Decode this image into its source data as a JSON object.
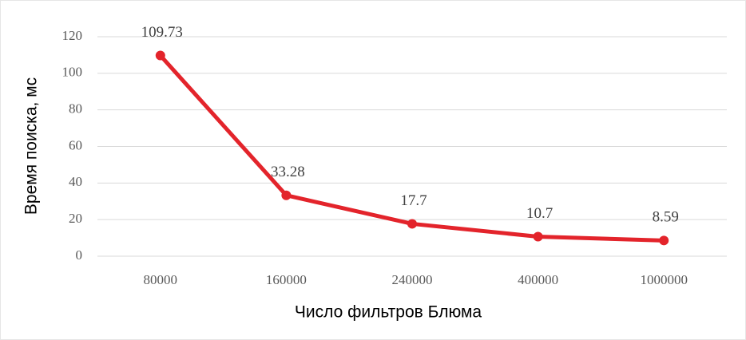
{
  "chart_data": {
    "type": "line",
    "x_label": "Число фильтров Блюма",
    "y_label": "Время поиска, мс",
    "categories": [
      "80000",
      "160000",
      "240000",
      "400000",
      "1000000"
    ],
    "series": [
      {
        "name": "Время поиска",
        "color": "#e3242b",
        "values": [
          109.73,
          33.28,
          17.7,
          10.7,
          8.59
        ]
      }
    ],
    "ylim": [
      0,
      120
    ],
    "yticks": [
      0,
      20,
      40,
      60,
      80,
      100,
      120
    ],
    "grid": true,
    "data_labels": true
  }
}
